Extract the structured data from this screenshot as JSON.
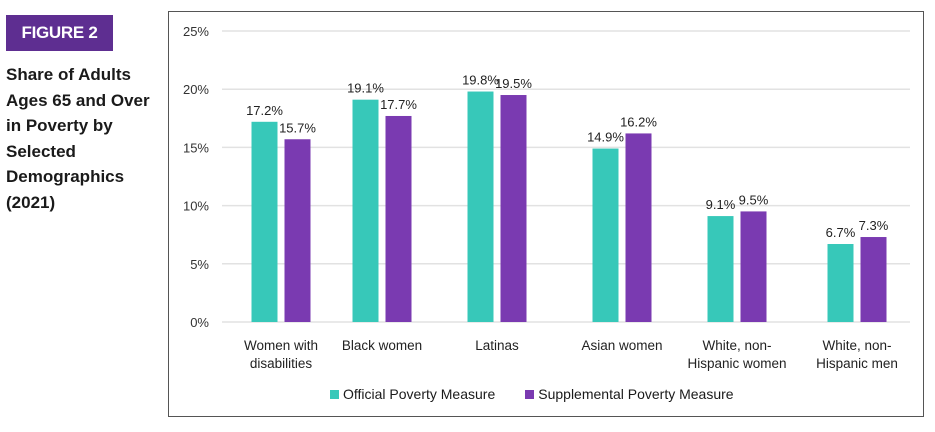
{
  "figure_label": "FIGURE 2",
  "chart_data": {
    "type": "bar",
    "title": "Share of Adults Ages 65 and Over in Poverty by Selected Demographics (2021)",
    "categories": [
      [
        "Women with",
        "disabilities"
      ],
      [
        "Black women"
      ],
      [
        "Latinas"
      ],
      [
        "Asian women"
      ],
      [
        "White, non-",
        "Hispanic women"
      ],
      [
        "White, non-",
        "Hispanic men"
      ]
    ],
    "series": [
      {
        "name": "Official Poverty Measure",
        "color": "#37c8b9",
        "values": [
          17.2,
          19.1,
          19.8,
          14.9,
          9.1,
          6.7
        ],
        "labels": [
          "17.2%",
          "19.1%",
          "19.8%",
          "14.9%",
          "9.1%",
          "6.7%"
        ]
      },
      {
        "name": "Supplemental Poverty Measure",
        "color": "#7a3ab1",
        "values": [
          15.7,
          17.7,
          19.5,
          16.2,
          9.5,
          7.3
        ],
        "labels": [
          "15.7%",
          "17.7%",
          "19.5%",
          "16.2%",
          "9.5%",
          "7.3%"
        ]
      }
    ],
    "yticks": [
      0,
      5,
      10,
      15,
      20,
      25
    ],
    "ytick_labels": [
      "0%",
      "5%",
      "10%",
      "15%",
      "20%",
      "25%"
    ],
    "ylim": [
      0,
      25
    ],
    "grid": true,
    "legend_position": "bottom"
  }
}
